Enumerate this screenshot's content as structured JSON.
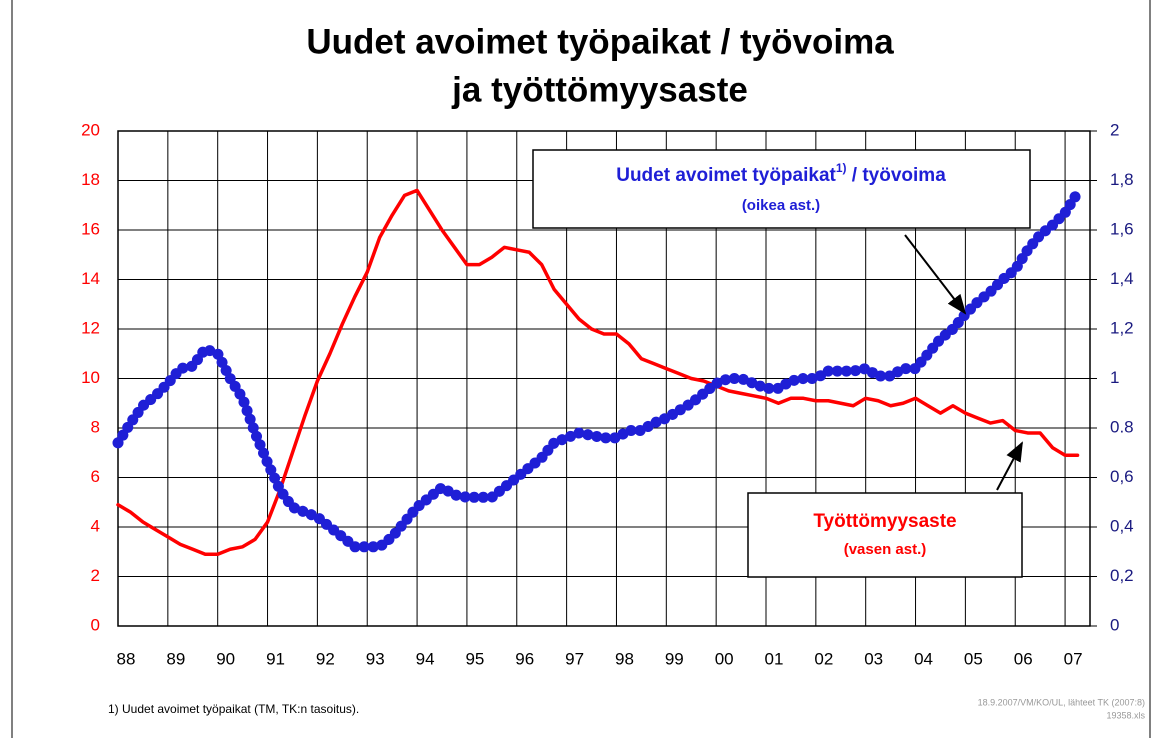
{
  "chart_data": {
    "type": "line",
    "title": [
      "Uudet avoimet työpaikat / työvoima",
      "ja työttömyysaste"
    ],
    "x": [
      1988,
      1988.25,
      1988.5,
      1988.75,
      1989,
      1989.25,
      1989.5,
      1989.75,
      1990,
      1990.25,
      1990.5,
      1990.75,
      1991,
      1991.25,
      1991.5,
      1991.75,
      1992,
      1992.25,
      1992.5,
      1992.75,
      1993,
      1993.25,
      1993.5,
      1993.75,
      1994,
      1994.25,
      1994.5,
      1994.75,
      1995,
      1995.25,
      1995.5,
      1995.75,
      1996,
      1996.25,
      1996.5,
      1996.75,
      1997,
      1997.25,
      1997.5,
      1997.75,
      1998,
      1998.25,
      1998.5,
      1998.75,
      1999,
      1999.25,
      1999.5,
      1999.75,
      2000,
      2000.25,
      2000.5,
      2000.75,
      2001,
      2001.25,
      2001.5,
      2001.75,
      2002,
      2002.25,
      2002.5,
      2002.75,
      2003,
      2003.25,
      2003.5,
      2003.75,
      2004,
      2004.25,
      2004.5,
      2004.75,
      2005,
      2005.25,
      2005.5,
      2005.75,
      2006,
      2006.25,
      2006.5,
      2006.75,
      2007,
      2007.25
    ],
    "series": [
      {
        "name": "Työttömyysaste",
        "note": "(vasen ast.)",
        "color": "#ff0000",
        "axis": "y",
        "values": [
          4.9,
          4.6,
          4.2,
          3.9,
          3.6,
          3.3,
          3.1,
          2.9,
          2.9,
          3.1,
          3.2,
          3.5,
          4.2,
          5.5,
          7.0,
          8.5,
          9.9,
          11.0,
          12.2,
          13.3,
          14.3,
          15.7,
          16.6,
          17.4,
          17.6,
          16.8,
          16.0,
          15.3,
          14.6,
          14.6,
          14.9,
          15.3,
          15.2,
          15.1,
          14.6,
          13.6,
          13.0,
          12.4,
          12.0,
          11.8,
          11.8,
          11.4,
          10.8,
          10.6,
          10.4,
          10.2,
          10.0,
          9.9,
          9.7,
          9.5,
          9.4,
          9.3,
          9.2,
          9.0,
          9.2,
          9.2,
          9.1,
          9.1,
          9.0,
          8.9,
          9.2,
          9.1,
          8.9,
          9.0,
          9.2,
          8.9,
          8.6,
          8.9,
          8.6,
          8.4,
          8.2,
          8.3,
          7.9,
          7.8,
          7.8,
          7.2,
          6.9,
          6.9
        ]
      },
      {
        "name": "Uudet avoimet  työpaikat",
        "name_sup": "1)",
        "name_rest": " / työvoima",
        "note": "(oikea ast.)",
        "color": "#1f1fd6",
        "axis": "y2",
        "values": [
          0.74,
          0.82,
          0.89,
          0.93,
          0.98,
          1.04,
          1.05,
          1.12,
          1.1,
          1.0,
          0.92,
          0.78,
          0.66,
          0.55,
          0.48,
          0.46,
          0.44,
          0.4,
          0.36,
          0.32,
          0.32,
          0.32,
          0.36,
          0.42,
          0.48,
          0.52,
          0.56,
          0.53,
          0.52,
          0.52,
          0.52,
          0.56,
          0.6,
          0.64,
          0.68,
          0.74,
          0.76,
          0.78,
          0.77,
          0.76,
          0.76,
          0.79,
          0.79,
          0.82,
          0.84,
          0.87,
          0.9,
          0.94,
          0.98,
          1.0,
          1.0,
          0.98,
          0.96,
          0.96,
          0.99,
          1.0,
          1.0,
          1.03,
          1.03,
          1.03,
          1.04,
          1.01,
          1.01,
          1.04,
          1.04,
          1.1,
          1.16,
          1.2,
          1.26,
          1.31,
          1.35,
          1.4,
          1.44,
          1.52,
          1.58,
          1.62,
          1.67,
          1.75
        ]
      }
    ],
    "xlim": [
      1988,
      2007.5
    ],
    "xticks": [
      {
        "value": 1988,
        "label": "88"
      },
      {
        "value": 1989,
        "label": "89"
      },
      {
        "value": 1990,
        "label": "90"
      },
      {
        "value": 1991,
        "label": "91"
      },
      {
        "value": 1992,
        "label": "92"
      },
      {
        "value": 1993,
        "label": "93"
      },
      {
        "value": 1994,
        "label": "94"
      },
      {
        "value": 1995,
        "label": "95"
      },
      {
        "value": 1996,
        "label": "96"
      },
      {
        "value": 1997,
        "label": "97"
      },
      {
        "value": 1998,
        "label": "98"
      },
      {
        "value": 1999,
        "label": "99"
      },
      {
        "value": 2000,
        "label": "00"
      },
      {
        "value": 2001,
        "label": "01"
      },
      {
        "value": 2002,
        "label": "02"
      },
      {
        "value": 2003,
        "label": "03"
      },
      {
        "value": 2004,
        "label": "04"
      },
      {
        "value": 2005,
        "label": "05"
      },
      {
        "value": 2006,
        "label": "06"
      },
      {
        "value": 2007,
        "label": "07"
      }
    ],
    "ylim": [
      0,
      20
    ],
    "yticks": [
      0,
      2,
      4,
      6,
      8,
      10,
      12,
      14,
      16,
      18,
      20
    ],
    "y2lim": [
      0,
      2
    ],
    "y2ticks": [
      0,
      {
        "value": 0.2,
        "label": "0,2"
      },
      {
        "value": 0.4,
        "label": "0,4"
      },
      {
        "value": 0.6,
        "label": "0,6"
      },
      {
        "value": 0.8,
        "label": "0.8"
      },
      1,
      {
        "value": 1.2,
        "label": "1,2"
      },
      {
        "value": 1.4,
        "label": "1,4"
      },
      {
        "value": 1.6,
        "label": "1,6"
      },
      {
        "value": 1.8,
        "label": "1,8"
      },
      2
    ],
    "grid": true,
    "footnote": "1) Uudet avoimet työpaikat (TM, TK:n tasoitus).",
    "source": [
      "18.9.2007/VM/KO/UL, lähteet TK (2007:8)",
      "19358.xls"
    ]
  }
}
